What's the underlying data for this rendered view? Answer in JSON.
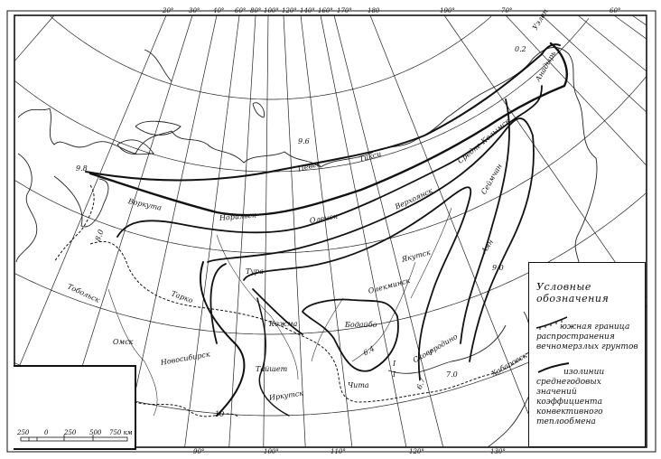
{
  "map": {
    "graticule_top": [
      "20°",
      "30°",
      "40°",
      "60°",
      "80°",
      "100°",
      "120°",
      "140°",
      "160°",
      "170°",
      "180",
      "190°",
      "70°",
      "60°"
    ],
    "graticule_bottom": [
      "90°",
      "100°",
      "110°",
      "120°",
      "130°"
    ],
    "places": {
      "vorkuta": "Воркута",
      "norilsk": "Норильск",
      "olenek": "Оленек",
      "tiksi": "Тикси",
      "verkhoyansk": "Верхоянск",
      "yakutsk": "Якутск",
      "olekminsk": "Олекминск",
      "tura": "Тура",
      "tobolsk": "Тобольск",
      "tarko": "Тарко",
      "omsk": "Омск",
      "novosibirsk": "Новосибирск",
      "kezhma": "Кежма",
      "tayshet": "Тайшет",
      "irkutsk": "Иркутск",
      "bodaybo": "Бодайбо",
      "chita": "Чита",
      "skovorodino": "Сковородино",
      "khabarovsk": "Хабаровск",
      "ayan": "Аян",
      "srednekolymsk": "Средне-Колымск",
      "seymchan": "Сеймчан",
      "uelen": "Уэлен",
      "anadyr": "Анадырь",
      "pevek": "Певек"
    },
    "isoline_values": [
      "9.6",
      "9.8",
      "8.0",
      "6.4",
      "6.7",
      "0.2",
      "9.0",
      "7.0",
      "10"
    ],
    "roman_marks": [
      "I",
      "I",
      "I",
      "I"
    ]
  },
  "legend": {
    "title": "Условные обозначения",
    "items": [
      {
        "symbol": "hatched-boundary-line",
        "label": "южная граница распространения вечномерзлых грунтов"
      },
      {
        "symbol": "bold-isoline",
        "label": "изолинии среднегодовых значений коэффициента конвективного теплообмена"
      }
    ]
  },
  "scale": {
    "labels": [
      "250",
      "0",
      "250",
      "500",
      "750 км"
    ]
  }
}
